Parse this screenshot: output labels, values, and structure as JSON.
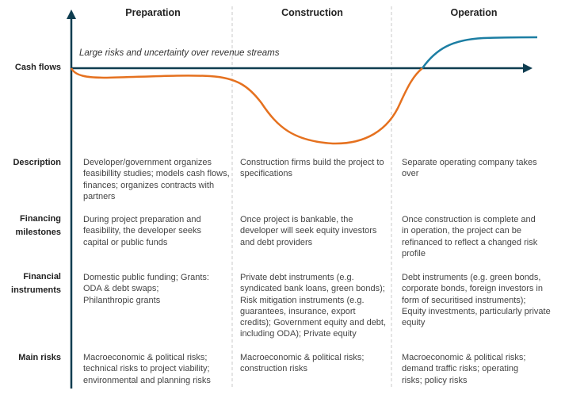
{
  "phases": [
    "Preparation",
    "Construction",
    "Operation"
  ],
  "axis": {
    "y_label": "Cash flows",
    "annotation": "Large risks and uncertainty over revenue streams"
  },
  "colors": {
    "axis": "#0f3d50",
    "cost_curve": "#e5711f",
    "revenue_curve": "#1c7ea3",
    "divider": "#c8c8c8"
  },
  "rows": [
    {
      "label": "Description",
      "cells": [
        "Developer/government organizes feasibillity studies; models cash flows, finances; organizes contracts with partners",
        "Construction firms build the project to specifications",
        "Separate operating company takes over"
      ]
    },
    {
      "label": "Financing milestones",
      "cells": [
        "During project preparation and feasibility, the developer seeks capital or public funds",
        "Once project is bankable, the developer will seek equity investors and debt providers",
        "Once construction is complete and in operation, the project can be refinanced to reflect a changed risk profile"
      ]
    },
    {
      "label": "Financial instruments",
      "cells": [
        "Domestic public funding; Grants: ODA  & debt swaps; Philanthropic grants",
        "Private debt instruments (e.g. syndicated bank loans, green bonds); Risk mitigation instruments (e.g. guarantees, insurance, export credits); Government equity and debt, including ODA); Private equity",
        "Debt instruments (e.g. green bonds, corporate bonds, foreign investors in form of securitised instruments); Equity investments, particularly private equity"
      ]
    },
    {
      "label": "Main risks",
      "cells": [
        "Macroeconomic & political risks; technical risks to project viability; environmental and planning risks",
        "Macroeconomic & political risks; construction risks",
        "Macroeconomic & political risks; demand traffic risks; operating risks; policy risks"
      ]
    }
  ]
}
